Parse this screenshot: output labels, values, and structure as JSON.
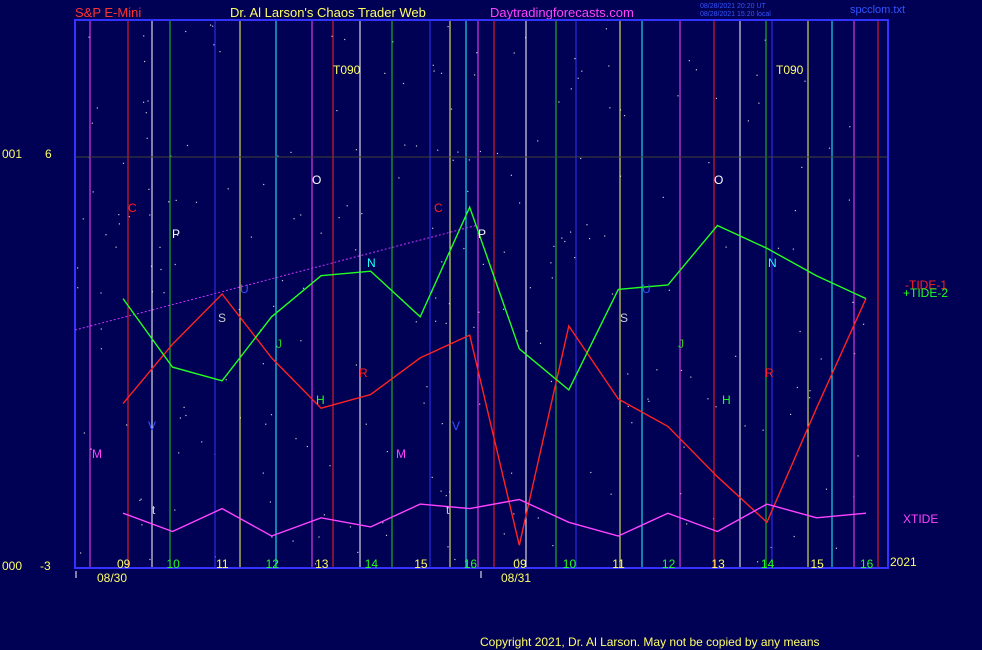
{
  "header": {
    "instrument": "S&P E-Mini",
    "site": "Dr. Al Larson's Chaos Trader Web",
    "url": "Daytradingforecasts.com",
    "stamp_1": "08/28/2021 20:20 UT",
    "stamp_2": "08/28/2021 15:20 local",
    "file": "spcclom.txt"
  },
  "y_axis": {
    "top_left": "001",
    "top_value": "6",
    "bottom_left": "000",
    "bottom_value": "-3"
  },
  "copyright": "Copyright 2021, Dr. Al Larson. May not be copied by any means",
  "colors": {
    "background": "#000055",
    "frame": "#3333ff",
    "tide1": "#ff2222",
    "tide2": "#22ff22",
    "xtide": "#ff44ff",
    "trend": "#cc33ff"
  },
  "chart_data": {
    "type": "line",
    "x": [
      "08/30 09:00",
      "08/30 10:00",
      "08/30 11:00",
      "08/30 12:00",
      "08/30 13:00",
      "08/30 14:00",
      "08/30 15:00",
      "08/30 16:00",
      "08/31 09:00",
      "08/31 10:00",
      "08/31 11:00",
      "08/31 12:00",
      "08/31 13:00",
      "08/31 14:00",
      "08/31 15:00",
      "08/31 16:00"
    ],
    "x_tick_labels": [
      "09",
      "10",
      "11",
      "12",
      "13",
      "14",
      "15",
      "16",
      "09",
      "10",
      "11",
      "12",
      "13",
      "14",
      "15",
      "16"
    ],
    "date_labels": [
      "08/30",
      "08/31"
    ],
    "year_label": "2021",
    "ylim": [
      -3,
      6
    ],
    "series": [
      {
        "name": "-TIDE-1",
        "values": [
          0.6,
          1.9,
          3.0,
          1.6,
          0.5,
          0.8,
          1.6,
          2.1,
          -2.5,
          2.3,
          0.7,
          0.1,
          -1.0,
          -2.0,
          0.5,
          2.9
        ]
      },
      {
        "name": "+TIDE-2",
        "values": [
          2.9,
          1.4,
          1.1,
          2.5,
          3.4,
          3.5,
          2.5,
          4.9,
          1.8,
          0.9,
          3.1,
          3.2,
          4.5,
          4.0,
          3.4,
          2.9
        ]
      },
      {
        "name": "XTIDE",
        "values": [
          -1.8,
          -2.2,
          -1.7,
          -2.3,
          -1.9,
          -2.1,
          -1.6,
          -1.7,
          -1.5,
          -2.0,
          -2.3,
          -1.8,
          -2.2,
          -1.6,
          -1.9,
          -1.8
        ]
      }
    ],
    "vertical_markers": [
      "C",
      "P",
      "S",
      "O",
      "J",
      "H",
      "N",
      "R",
      "M",
      "V",
      "U",
      "t"
    ],
    "annotations": [
      "T090",
      "T090"
    ]
  }
}
